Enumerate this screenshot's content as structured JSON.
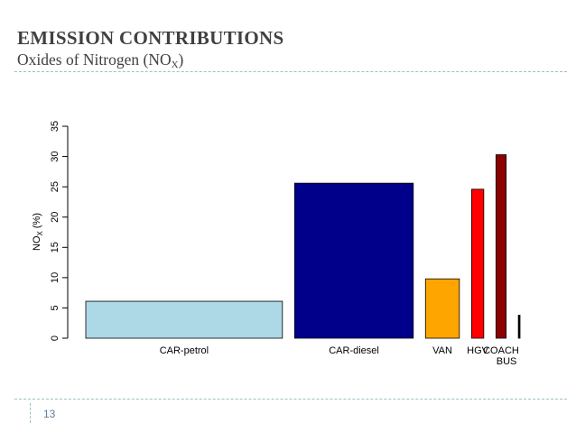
{
  "slide": {
    "title": "EMISSION CONTRIBUTIONS",
    "subtitle_prefix": "Oxides of Nitrogen (NO",
    "subtitle_sub": "X",
    "subtitle_suffix": ")",
    "page_number": "13"
  },
  "colors": {
    "title_text": "#404040",
    "divider": "#9bc0c6"
  },
  "chart_data": {
    "type": "bar",
    "title": "",
    "xlabel": "",
    "ylabel_prefix": "NO",
    "ylabel_sub": "X",
    "ylabel_suffix": " (%)",
    "ylim": [
      0,
      35
    ],
    "yticks": [
      0,
      5,
      10,
      15,
      20,
      25,
      30,
      35
    ],
    "categories": [
      "CAR-petrol",
      "CAR-diesel",
      "VAN",
      "HGV",
      "COACH",
      "BUS"
    ],
    "values": [
      6.1,
      25.6,
      9.8,
      24.6,
      30.3,
      3.8
    ],
    "relative_widths": [
      29.0,
      17.5,
      5.0,
      1.8,
      1.5,
      0.25
    ],
    "colors": [
      "#add8e6",
      "#00008b",
      "#ffa500",
      "#ff0000",
      "#8b0000",
      "#000000"
    ],
    "grid": false,
    "legend": "none"
  }
}
